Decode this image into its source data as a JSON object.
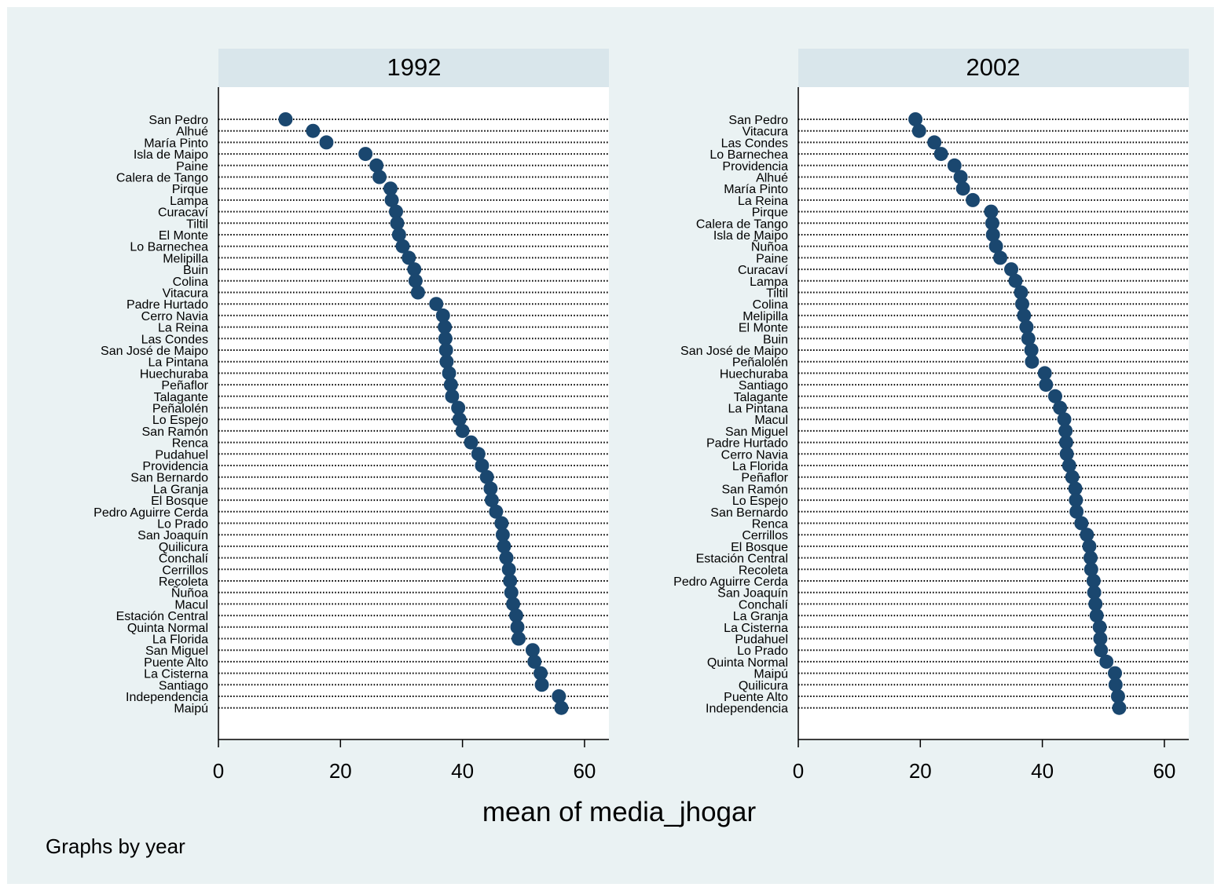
{
  "chart_data": {
    "type": "dot",
    "xlabel": "mean of media_jhogar",
    "note": "Graphs by year",
    "xlim": [
      0,
      64
    ],
    "xticks": [
      0,
      20,
      40,
      60
    ],
    "colors": {
      "background": "#eaf2f3",
      "panel_header": "#d9e6eb",
      "marker": "#1a476f"
    },
    "panels": [
      {
        "title": "1992",
        "points": [
          {
            "label": "San Pedro",
            "value": 11
          },
          {
            "label": "Alhué",
            "value": 15.5
          },
          {
            "label": "María Pinto",
            "value": 17.7
          },
          {
            "label": "Isla de Maipo",
            "value": 24.1
          },
          {
            "label": "Paine",
            "value": 25.9
          },
          {
            "label": "Calera de Tango",
            "value": 26.4
          },
          {
            "label": "Pirque",
            "value": 28.2
          },
          {
            "label": "Lampa",
            "value": 28.4
          },
          {
            "label": "Curacaví",
            "value": 29.1
          },
          {
            "label": "Tiltil",
            "value": 29.3
          },
          {
            "label": "El Monte",
            "value": 29.6
          },
          {
            "label": "Lo Barnechea",
            "value": 30.2
          },
          {
            "label": "Melipilla",
            "value": 31.2
          },
          {
            "label": "Buin",
            "value": 32.1
          },
          {
            "label": "Colina",
            "value": 32.3
          },
          {
            "label": "Vitacura",
            "value": 32.7
          },
          {
            "label": "Padre Hurtado",
            "value": 35.7
          },
          {
            "label": "Cerro Navia",
            "value": 36.8
          },
          {
            "label": "La Reina",
            "value": 37.1
          },
          {
            "label": "Las Condes",
            "value": 37.2
          },
          {
            "label": "San José de Maipo",
            "value": 37.3
          },
          {
            "label": "La Pintana",
            "value": 37.4
          },
          {
            "label": "Huechuraba",
            "value": 37.8
          },
          {
            "label": "Peñaflor",
            "value": 38.1
          },
          {
            "label": "Talagante",
            "value": 38.3
          },
          {
            "label": "Peñalolén",
            "value": 39.3
          },
          {
            "label": "Lo Espejo",
            "value": 39.5
          },
          {
            "label": "San Ramón",
            "value": 40
          },
          {
            "label": "Renca",
            "value": 41.4
          },
          {
            "label": "Pudahuel",
            "value": 42.6
          },
          {
            "label": "Providencia",
            "value": 43.2
          },
          {
            "label": "San Bernardo",
            "value": 44
          },
          {
            "label": "La Granja",
            "value": 44.6
          },
          {
            "label": "El Bosque",
            "value": 44.8
          },
          {
            "label": "Pedro Aguirre Cerda",
            "value": 45.5
          },
          {
            "label": "Lo Prado",
            "value": 46.4
          },
          {
            "label": "San Joaquín",
            "value": 46.6
          },
          {
            "label": "Quilicura",
            "value": 46.8
          },
          {
            "label": "Conchalí",
            "value": 47.2
          },
          {
            "label": "Cerrillos",
            "value": 47.6
          },
          {
            "label": "Recoleta",
            "value": 47.8
          },
          {
            "label": "Ñuñoa",
            "value": 48
          },
          {
            "label": "Macul",
            "value": 48.3
          },
          {
            "label": "Estación Central",
            "value": 48.8
          },
          {
            "label": "Quinta Normal",
            "value": 49
          },
          {
            "label": "La Florida",
            "value": 49.2
          },
          {
            "label": "San Miguel",
            "value": 51.5
          },
          {
            "label": "Puente Alto",
            "value": 51.8
          },
          {
            "label": "La Cisterna",
            "value": 52.8
          },
          {
            "label": "Santiago",
            "value": 53
          },
          {
            "label": "Independencia",
            "value": 55.8
          },
          {
            "label": "Maipú",
            "value": 56.2
          }
        ]
      },
      {
        "title": "2002",
        "points": [
          {
            "label": "San Pedro",
            "value": 19.2
          },
          {
            "label": "Vitacura",
            "value": 19.8
          },
          {
            "label": "Las Condes",
            "value": 22.3
          },
          {
            "label": "Lo Barnechea",
            "value": 23.4
          },
          {
            "label": "Providencia",
            "value": 25.6
          },
          {
            "label": "Alhué",
            "value": 26.6
          },
          {
            "label": "María Pinto",
            "value": 27
          },
          {
            "label": "La Reina",
            "value": 28.6
          },
          {
            "label": "Pirque",
            "value": 31.6
          },
          {
            "label": "Calera de Tango",
            "value": 31.8
          },
          {
            "label": "Isla de Maipo",
            "value": 31.9
          },
          {
            "label": "Ñuñoa",
            "value": 32.4
          },
          {
            "label": "Paine",
            "value": 33.1
          },
          {
            "label": "Curacaví",
            "value": 34.9
          },
          {
            "label": "Lampa",
            "value": 35.6
          },
          {
            "label": "Tiltil",
            "value": 36.5
          },
          {
            "label": "Colina",
            "value": 36.7
          },
          {
            "label": "Melipilla",
            "value": 37
          },
          {
            "label": "El Monte",
            "value": 37.4
          },
          {
            "label": "Buin",
            "value": 37.7
          },
          {
            "label": "San José de Maipo",
            "value": 38.2
          },
          {
            "label": "Peñalolén",
            "value": 38.3
          },
          {
            "label": "Huechuraba",
            "value": 40.4
          },
          {
            "label": "Santiago",
            "value": 40.6
          },
          {
            "label": "Talagante",
            "value": 42.1
          },
          {
            "label": "La Pintana",
            "value": 42.9
          },
          {
            "label": "Macul",
            "value": 43.6
          },
          {
            "label": "San Miguel",
            "value": 43.8
          },
          {
            "label": "Padre Hurtado",
            "value": 43.9
          },
          {
            "label": "Cerro Navia",
            "value": 44
          },
          {
            "label": "La Florida",
            "value": 44.4
          },
          {
            "label": "Peñaflor",
            "value": 44.9
          },
          {
            "label": "San Ramón",
            "value": 45.4
          },
          {
            "label": "Lo Espejo",
            "value": 45.5
          },
          {
            "label": "San Bernardo",
            "value": 45.6
          },
          {
            "label": "Renca",
            "value": 46.4
          },
          {
            "label": "Cerrillos",
            "value": 47.3
          },
          {
            "label": "El Bosque",
            "value": 47.7
          },
          {
            "label": "Estación Central",
            "value": 47.9
          },
          {
            "label": "Recoleta",
            "value": 48
          },
          {
            "label": "Pedro Aguirre Cerda",
            "value": 48.4
          },
          {
            "label": "San Joaquín",
            "value": 48.5
          },
          {
            "label": "Conchalí",
            "value": 48.7
          },
          {
            "label": "La Granja",
            "value": 48.9
          },
          {
            "label": "La Cisterna",
            "value": 49.4
          },
          {
            "label": "Pudahuel",
            "value": 49.5
          },
          {
            "label": "Lo Prado",
            "value": 49.6
          },
          {
            "label": "Quinta Normal",
            "value": 50.5
          },
          {
            "label": "Maipú",
            "value": 51.9
          },
          {
            "label": "Quilicura",
            "value": 52
          },
          {
            "label": "Puente Alto",
            "value": 52.4
          },
          {
            "label": "Independencia",
            "value": 52.6
          }
        ]
      }
    ]
  }
}
